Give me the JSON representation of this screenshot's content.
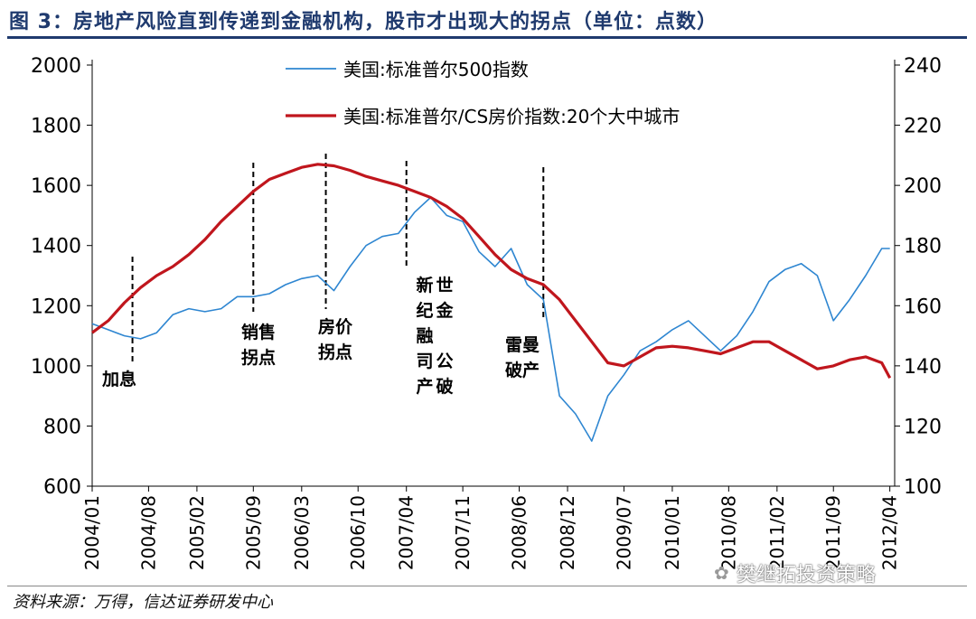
{
  "figure": {
    "title": "图 3：房地产风险直到传递到金融机构，股市才出现大的拐点（单位：点数）",
    "source": "资料来源：万得，信达证券研发中心",
    "watermark": "樊继拓投资策略"
  },
  "chart_data": {
    "type": "line",
    "title": "",
    "xlabel": "",
    "ylabel": "",
    "ylim": [
      600,
      2000
    ],
    "y2lim": [
      100,
      240
    ],
    "y_ticks": [
      600,
      800,
      1000,
      1200,
      1400,
      1600,
      1800,
      2000
    ],
    "y2_ticks": [
      100,
      120,
      140,
      160,
      180,
      200,
      220,
      240
    ],
    "x_tick_labels": [
      "2004/01",
      "2004/08",
      "2005/02",
      "2005/09",
      "2006/03",
      "2006/10",
      "2007/04",
      "2007/11",
      "2008/06",
      "2008/12",
      "2009/07",
      "2010/01",
      "2010/08",
      "2011/02",
      "2011/09",
      "2012/04"
    ],
    "legend_position": "top-center",
    "series": [
      {
        "name": "美国:标准普尔500指数",
        "axis": "left",
        "color": "#2e86d1",
        "x": [
          "2004/01",
          "2004/03",
          "2004/05",
          "2004/07",
          "2004/09",
          "2004/11",
          "2005/01",
          "2005/03",
          "2005/05",
          "2005/07",
          "2005/09",
          "2005/11",
          "2006/01",
          "2006/03",
          "2006/05",
          "2006/07",
          "2006/09",
          "2006/11",
          "2007/01",
          "2007/03",
          "2007/05",
          "2007/07",
          "2007/09",
          "2007/11",
          "2008/01",
          "2008/03",
          "2008/05",
          "2008/07",
          "2008/09",
          "2008/11",
          "2009/01",
          "2009/03",
          "2009/05",
          "2009/07",
          "2009/09",
          "2009/11",
          "2010/01",
          "2010/03",
          "2010/05",
          "2010/07",
          "2010/09",
          "2010/11",
          "2011/01",
          "2011/03",
          "2011/05",
          "2011/07",
          "2011/09",
          "2011/11",
          "2012/01",
          "2012/03",
          "2012/04"
        ],
        "values": [
          1140,
          1120,
          1100,
          1090,
          1110,
          1170,
          1190,
          1180,
          1190,
          1230,
          1230,
          1240,
          1270,
          1290,
          1300,
          1250,
          1330,
          1400,
          1430,
          1440,
          1510,
          1560,
          1500,
          1480,
          1380,
          1330,
          1390,
          1270,
          1220,
          900,
          840,
          750,
          900,
          970,
          1050,
          1080,
          1120,
          1150,
          1100,
          1050,
          1100,
          1180,
          1280,
          1320,
          1340,
          1300,
          1150,
          1220,
          1300,
          1390,
          1390
        ]
      },
      {
        "name": "美国:标准普尔/CS房价指数:20个大中城市",
        "axis": "right",
        "color": "#c0161d",
        "x": [
          "2004/01",
          "2004/03",
          "2004/05",
          "2004/07",
          "2004/09",
          "2004/11",
          "2005/01",
          "2005/03",
          "2005/05",
          "2005/07",
          "2005/09",
          "2005/11",
          "2006/01",
          "2006/03",
          "2006/05",
          "2006/07",
          "2006/09",
          "2006/11",
          "2007/01",
          "2007/03",
          "2007/05",
          "2007/07",
          "2007/09",
          "2007/11",
          "2008/01",
          "2008/03",
          "2008/05",
          "2008/07",
          "2008/09",
          "2008/11",
          "2009/01",
          "2009/03",
          "2009/05",
          "2009/07",
          "2009/09",
          "2009/11",
          "2010/01",
          "2010/03",
          "2010/05",
          "2010/07",
          "2010/09",
          "2010/11",
          "2011/01",
          "2011/03",
          "2011/05",
          "2011/07",
          "2011/09",
          "2011/11",
          "2012/01",
          "2012/03",
          "2012/04"
        ],
        "values": [
          151,
          155,
          161,
          166,
          170,
          173,
          177,
          182,
          188,
          193,
          198,
          202,
          204,
          206,
          207,
          206.5,
          205,
          203,
          201.5,
          200,
          198,
          196,
          193,
          189,
          183,
          177,
          172,
          169,
          167,
          162,
          155,
          148,
          141,
          140,
          143,
          146,
          146.5,
          146,
          145,
          144,
          146,
          148,
          148,
          145,
          142,
          139,
          140,
          142,
          143,
          141,
          136
        ]
      }
    ],
    "annotations": [
      {
        "label": "加息",
        "x": "2004/06"
      },
      {
        "label": "销售拐点",
        "x": "2005/09"
      },
      {
        "label": "房价拐点",
        "x": "2006/06"
      },
      {
        "label": "新世纪金融公司破产",
        "x": "2007/04"
      },
      {
        "label": "雷曼破产",
        "x": "2008/09"
      }
    ]
  }
}
